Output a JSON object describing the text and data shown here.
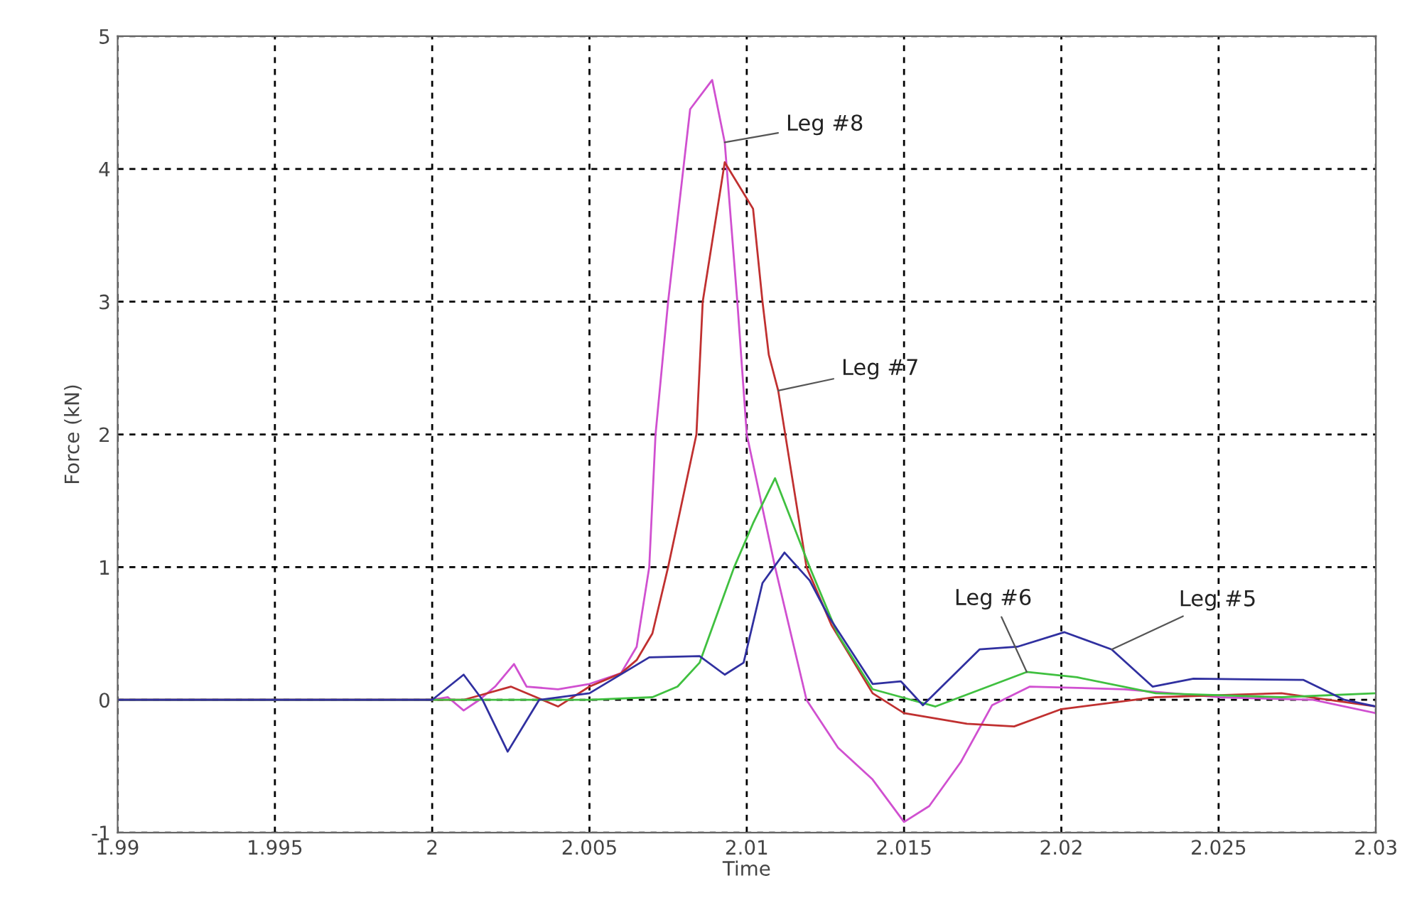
{
  "chart_data": {
    "type": "line",
    "xlabel": "Time",
    "ylabel": "Force (kN)",
    "xlim": [
      1.99,
      2.03
    ],
    "ylim": [
      -1,
      5
    ],
    "xticks": [
      {
        "value": 1.99,
        "label": "1.99"
      },
      1.995,
      2,
      2.005,
      2.01,
      2.015,
      2.02,
      2.025,
      2.03
    ],
    "yticks": [
      -1,
      0,
      1,
      2,
      3,
      4,
      5
    ],
    "grid": true,
    "line_style": "solid",
    "marker": "none",
    "series": [
      {
        "color": "#d050d0",
        "x": [
          1.99,
          2.0,
          2.0005,
          2.001,
          2.0015,
          2.002,
          2.0026,
          2.003,
          2.004,
          2.005,
          2.006,
          2.0065,
          2.0069,
          2.0071,
          2.0075,
          2.0082,
          2.0089,
          2.0093,
          2.0097,
          2.01,
          2.0109,
          2.0119,
          2.0129,
          2.014,
          2.015,
          2.0158,
          2.0168,
          2.0178,
          2.019,
          2.022,
          2.025,
          2.028,
          2.03
        ],
        "values": [
          0,
          0,
          0.02,
          -0.08,
          0,
          0.1,
          0.27,
          0.1,
          0.08,
          0.12,
          0.2,
          0.4,
          1.0,
          2.0,
          3.0,
          4.45,
          4.67,
          4.2,
          3.0,
          2.0,
          1.0,
          0,
          -0.36,
          -0.6,
          -0.92,
          -0.8,
          -0.47,
          -0.04,
          0.1,
          0.08,
          0.02,
          0.0,
          -0.1
        ]
      },
      {
        "color": "#c03030",
        "x": [
          1.99,
          2.0,
          2.001,
          2.0025,
          2.004,
          2.005,
          2.006,
          2.0065,
          2.007,
          2.0075,
          2.0084,
          2.0086,
          2.0093,
          2.0102,
          2.0105,
          2.0107,
          2.011,
          2.0119,
          2.0127,
          2.014,
          2.015,
          2.017,
          2.0185,
          2.02,
          2.023,
          2.027,
          2.03
        ],
        "values": [
          0,
          0,
          0,
          0.1,
          -0.05,
          0.1,
          0.2,
          0.3,
          0.5,
          1.0,
          2.0,
          3.0,
          4.05,
          3.7,
          3.0,
          2.6,
          2.33,
          1.0,
          0.56,
          0.05,
          -0.1,
          -0.18,
          -0.2,
          -0.07,
          0.02,
          0.05,
          -0.05
        ]
      },
      {
        "color": "#40c040",
        "x": [
          1.99,
          2.0,
          2.005,
          2.007,
          2.0078,
          2.0085,
          2.0096,
          2.0102,
          2.0109,
          2.012,
          2.0129,
          2.014,
          2.016,
          2.0189,
          2.0205,
          2.023,
          2.027,
          2.03
        ],
        "values": [
          0,
          0,
          0,
          0.02,
          0.1,
          0.28,
          1.0,
          1.33,
          1.67,
          1.0,
          0.49,
          0.08,
          -0.05,
          0.21,
          0.17,
          0.05,
          0.02,
          0.05
        ]
      },
      {
        "color": "#3030a0",
        "x": [
          1.99,
          2.0,
          2.001,
          2.0016,
          2.0024,
          2.0034,
          2.005,
          2.0069,
          2.0085,
          2.0093,
          2.0099,
          2.0105,
          2.0112,
          2.012,
          2.0126,
          2.014,
          2.0149,
          2.0156,
          2.0174,
          2.0186,
          2.0201,
          2.0216,
          2.0229,
          2.0242,
          2.0277,
          2.029,
          2.03
        ],
        "values": [
          0,
          0,
          0.19,
          0,
          -0.39,
          0,
          0.05,
          0.32,
          0.33,
          0.19,
          0.28,
          0.88,
          1.11,
          0.9,
          0.63,
          0.12,
          0.14,
          -0.04,
          0.38,
          0.4,
          0.51,
          0.38,
          0.1,
          0.16,
          0.15,
          0,
          -0.05
        ]
      }
    ],
    "annotations": [
      {
        "text": "Leg #8",
        "x": 2.0093,
        "y": 4.2
      },
      {
        "text": "Leg #7",
        "x": 2.011,
        "y": 2.33
      },
      {
        "text": "Leg #6",
        "x": 2.0189,
        "y": 0.21
      },
      {
        "text": "Leg #5",
        "x": 2.0216,
        "y": 0.38
      }
    ]
  }
}
